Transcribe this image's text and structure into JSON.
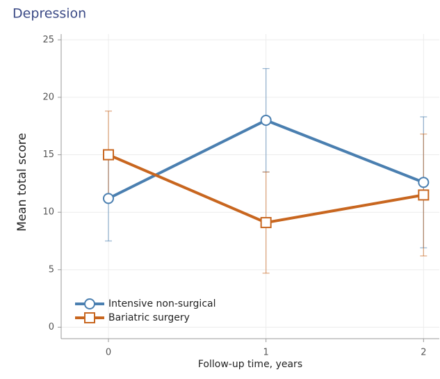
{
  "chart_data": {
    "type": "line",
    "title": "Depression",
    "x_label": "Follow-up time, years",
    "y_label": "Mean total score",
    "x": [
      0,
      1,
      2
    ],
    "series": [
      {
        "name": "Intensive non-surgical",
        "color": "#4a7fb0",
        "marker": "circle",
        "values": [
          11.2,
          18.0,
          12.6
        ],
        "errors": [
          3.7,
          4.5,
          5.7
        ]
      },
      {
        "name": "Bariatric surgery",
        "color": "#c8661f",
        "marker": "square",
        "values": [
          15.0,
          9.1,
          11.5
        ],
        "errors": [
          3.8,
          4.4,
          5.3
        ]
      }
    ],
    "xlim": [
      -0.3,
      2.1
    ],
    "xticks": [
      0,
      1,
      2
    ],
    "ylim": [
      -1,
      25.5
    ],
    "yticks": [
      0,
      5,
      10,
      15,
      20,
      25
    ],
    "grid": true,
    "legend": "lower left"
  }
}
